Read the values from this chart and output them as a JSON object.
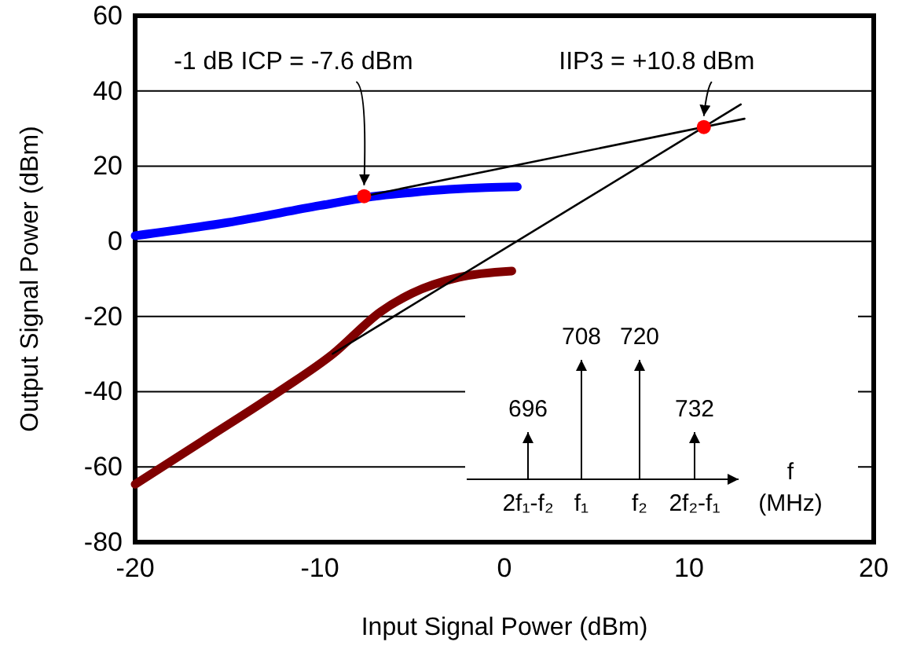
{
  "chart_data": {
    "type": "line",
    "xlabel": "Input Signal Power (dBm)",
    "ylabel": "Output Signal Power (dBm)",
    "xlim": [
      -20,
      20
    ],
    "xticks": [
      -20,
      -10,
      0,
      10,
      20
    ],
    "ylim": [
      -80,
      60
    ],
    "yticks": [
      -80,
      -60,
      -40,
      -20,
      0,
      20,
      40,
      60
    ],
    "grid": "y",
    "marker": "none",
    "line_style": "solid",
    "series": [
      {
        "color": "#0000ff",
        "x": [
          -20,
          -15,
          -10,
          -7,
          -5,
          -3,
          -1,
          0.7
        ],
        "values": [
          1.5,
          5,
          9.5,
          12,
          13,
          13.8,
          14.3,
          14.5
        ]
      },
      {
        "color": "#800000",
        "x": [
          -20,
          -16,
          -12.1,
          -9.3,
          -6.7,
          -5,
          -2.5,
          0.4
        ],
        "values": [
          -64.6,
          -52,
          -39.6,
          -30,
          -18.7,
          -13.8,
          -9.6,
          -7.9
        ]
      },
      {
        "color": "#000000",
        "x": [
          -7.6,
          13
        ],
        "values": [
          12,
          32.6
        ]
      },
      {
        "color": "#000000",
        "x": [
          -9.3,
          12.8
        ],
        "values": [
          -29.9,
          36.4
        ]
      },
      {
        "type": "scatter",
        "color": "#ff0000",
        "marker": "circle",
        "x": [
          -7.6,
          10.8
        ],
        "values": [
          12,
          30.4
        ]
      }
    ],
    "annotations": [
      {
        "text": "-1 dB ICP = -7.6 dBm",
        "x": -7.6,
        "y": 12
      },
      {
        "text": "IIP3 = +10.8 dBm",
        "x": 10.8,
        "y": 30.4
      },
      "696",
      "708",
      "720",
      "732",
      "2f₁-f₂",
      "f₁",
      "f₂",
      "2f₂-f₁",
      "f",
      "(MHz)"
    ]
  }
}
